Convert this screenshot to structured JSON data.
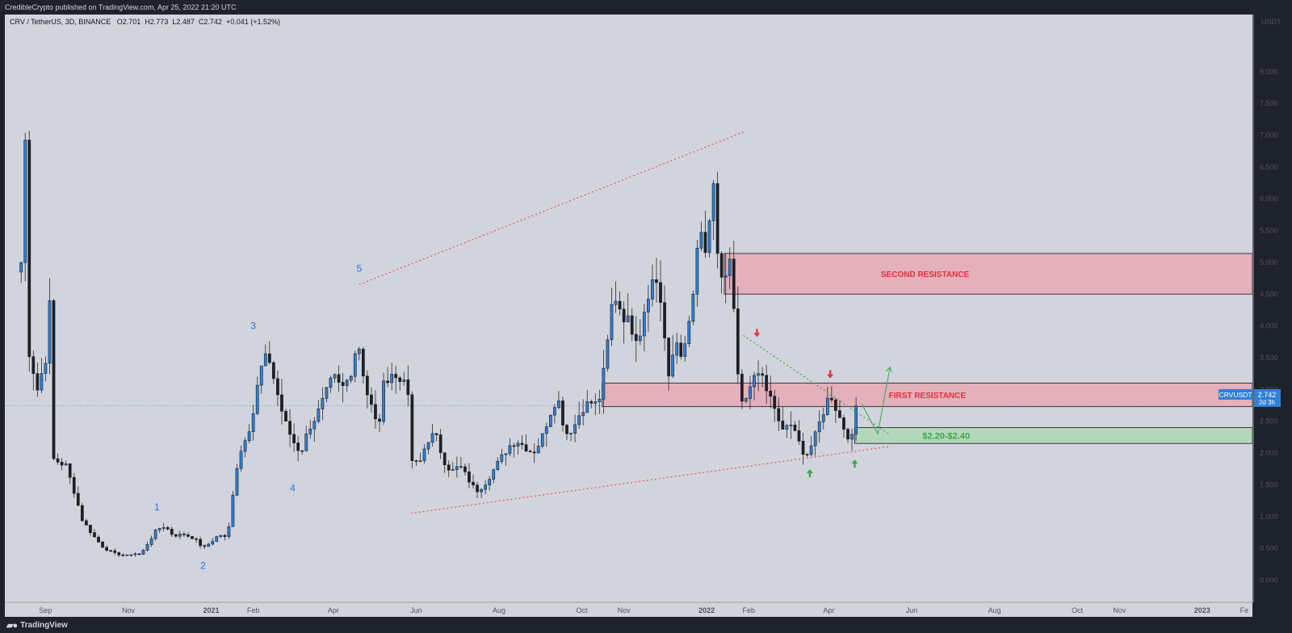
{
  "header": {
    "published": "CredibleCrypto published on TradingView.com, Apr 25, 2022 21:20 UTC"
  },
  "legend": {
    "symbol": "CRV / TetherUS, 3D, BINANCE",
    "o_label": "O",
    "o_value": "2.701",
    "h_label": "H",
    "h_value": "2.773",
    "l_label": "L",
    "l_value": "2.487",
    "c_label": "C",
    "c_value": "2.742",
    "change": "+0.041 (+1.52%)"
  },
  "axis": {
    "unit": "USDT"
  },
  "price_tag": {
    "symbol": "CRVUSDT",
    "price": "2.742",
    "countdown": "2d 3h"
  },
  "footer": {
    "brand": "TradingView"
  },
  "colors": {
    "up": "#2f80d6",
    "down": "#1e1e24",
    "resistance_fill": "#e8a4b0",
    "support_fill": "#a8d8b0",
    "trend": "#e8505b",
    "wave_label": "#2f6fe6",
    "green": "#3fa64a",
    "red": "#e0303a"
  },
  "chart_data": {
    "type": "candlestick",
    "symbol": "CRV / TetherUS",
    "interval": "3D",
    "y_ticks": [
      0,
      0.5,
      1,
      1.5,
      2,
      2.5,
      3,
      3.5,
      4,
      4.5,
      5,
      5.5,
      6,
      6.5,
      7,
      7.5,
      8
    ],
    "y_tick_labels": [
      "0.000",
      "0.500",
      "1.000",
      "1.500",
      "2.000",
      "2.500",
      "3.000",
      "3.500",
      "4.000",
      "4.500",
      "5.000",
      "5.500",
      "6.000",
      "6.500",
      "7.000",
      "7.500",
      "8.000"
    ],
    "ylim": [
      -0.35,
      8.9
    ],
    "x_tick_labels": [
      {
        "label": "Sep",
        "date": "2020-09-01"
      },
      {
        "label": "Nov",
        "date": "2020-11-01"
      },
      {
        "label": "2021",
        "date": "2021-01-01"
      },
      {
        "label": "Feb",
        "date": "2021-02-01"
      },
      {
        "label": "Apr",
        "date": "2021-04-01"
      },
      {
        "label": "Jun",
        "date": "2021-06-01"
      },
      {
        "label": "Aug",
        "date": "2021-08-01"
      },
      {
        "label": "Oct",
        "date": "2021-10-01"
      },
      {
        "label": "Nov",
        "date": "2021-11-01"
      },
      {
        "label": "2022",
        "date": "2022-01-01"
      },
      {
        "label": "Feb",
        "date": "2022-02-01"
      },
      {
        "label": "Apr",
        "date": "2022-04-01"
      },
      {
        "label": "Jun",
        "date": "2022-06-01"
      },
      {
        "label": "Aug",
        "date": "2022-08-01"
      },
      {
        "label": "Oct",
        "date": "2022-10-01"
      },
      {
        "label": "Nov",
        "date": "2022-11-01"
      },
      {
        "label": "2023",
        "date": "2023-01-01"
      },
      {
        "label": "Fe",
        "date": "2023-02-01"
      }
    ],
    "xlim": [
      "2020-08-02",
      "2023-02-07"
    ],
    "last_price": 2.742,
    "waypoints": [
      [
        "2020-08-14",
        5.0
      ],
      [
        "2020-08-17",
        6.9
      ],
      [
        "2020-08-20",
        3.6
      ],
      [
        "2020-08-26",
        3.0
      ],
      [
        "2020-09-01",
        3.5
      ],
      [
        "2020-09-04",
        4.3
      ],
      [
        "2020-09-07",
        1.9
      ],
      [
        "2020-09-16",
        1.8
      ],
      [
        "2020-09-22",
        1.4
      ],
      [
        "2020-09-28",
        0.95
      ],
      [
        "2020-10-06",
        0.7
      ],
      [
        "2020-10-14",
        0.5
      ],
      [
        "2020-10-22",
        0.42
      ],
      [
        "2020-10-30",
        0.38
      ],
      [
        "2020-11-05",
        0.42
      ],
      [
        "2020-11-10",
        0.4
      ],
      [
        "2020-11-16",
        0.6
      ],
      [
        "2020-11-22",
        0.8
      ],
      [
        "2020-11-28",
        0.85
      ],
      [
        "2020-12-04",
        0.7
      ],
      [
        "2020-12-12",
        0.72
      ],
      [
        "2020-12-20",
        0.65
      ],
      [
        "2020-12-26",
        0.5
      ],
      [
        "2021-01-01",
        0.6
      ],
      [
        "2021-01-07",
        0.72
      ],
      [
        "2021-01-13",
        0.65
      ],
      [
        "2021-01-16",
        1.2
      ],
      [
        "2021-01-19",
        1.7
      ],
      [
        "2021-01-25",
        2.2
      ],
      [
        "2021-01-31",
        2.5
      ],
      [
        "2021-02-06",
        3.3
      ],
      [
        "2021-02-12",
        3.55
      ],
      [
        "2021-02-18",
        3.0
      ],
      [
        "2021-02-24",
        2.5
      ],
      [
        "2021-03-02",
        2.2
      ],
      [
        "2021-03-08",
        2.0
      ],
      [
        "2021-03-14",
        2.4
      ],
      [
        "2021-03-20",
        2.6
      ],
      [
        "2021-03-26",
        2.9
      ],
      [
        "2021-04-01",
        3.2
      ],
      [
        "2021-04-07",
        3.0
      ],
      [
        "2021-04-13",
        3.2
      ],
      [
        "2021-04-19",
        3.8
      ],
      [
        "2021-04-25",
        3.0
      ],
      [
        "2021-05-01",
        2.6
      ],
      [
        "2021-05-04",
        2.3
      ],
      [
        "2021-05-07",
        3.0
      ],
      [
        "2021-05-13",
        3.3
      ],
      [
        "2021-05-19",
        3.1
      ],
      [
        "2021-05-25",
        3.3
      ],
      [
        "2021-05-28",
        1.9
      ],
      [
        "2021-06-03",
        1.8
      ],
      [
        "2021-06-09",
        2.2
      ],
      [
        "2021-06-15",
        2.3
      ],
      [
        "2021-06-21",
        1.9
      ],
      [
        "2021-06-27",
        1.7
      ],
      [
        "2021-07-03",
        1.8
      ],
      [
        "2021-07-09",
        1.6
      ],
      [
        "2021-07-15",
        1.4
      ],
      [
        "2021-07-21",
        1.5
      ],
      [
        "2021-07-27",
        1.7
      ],
      [
        "2021-08-02",
        1.9
      ],
      [
        "2021-08-08",
        2.1
      ],
      [
        "2021-08-14",
        2.2
      ],
      [
        "2021-08-20",
        2.1
      ],
      [
        "2021-08-26",
        2.0
      ],
      [
        "2021-09-01",
        2.2
      ],
      [
        "2021-09-07",
        2.6
      ],
      [
        "2021-09-13",
        2.9
      ],
      [
        "2021-09-19",
        2.3
      ],
      [
        "2021-09-25",
        2.4
      ],
      [
        "2021-10-01",
        2.7
      ],
      [
        "2021-10-07",
        2.8
      ],
      [
        "2021-10-13",
        2.75
      ],
      [
        "2021-10-19",
        3.5
      ],
      [
        "2021-10-22",
        4.2
      ],
      [
        "2021-10-25",
        4.5
      ],
      [
        "2021-10-31",
        4.2
      ],
      [
        "2021-11-06",
        4.0
      ],
      [
        "2021-11-12",
        3.8
      ],
      [
        "2021-11-18",
        4.5
      ],
      [
        "2021-11-24",
        4.8
      ],
      [
        "2021-11-30",
        4.2
      ],
      [
        "2021-12-03",
        3.0
      ],
      [
        "2021-12-09",
        3.8
      ],
      [
        "2021-12-15",
        3.5
      ],
      [
        "2021-12-21",
        4.3
      ],
      [
        "2021-12-27",
        5.5
      ],
      [
        "2022-01-02",
        5.0
      ],
      [
        "2022-01-05",
        6.5
      ],
      [
        "2022-01-08",
        5.3
      ],
      [
        "2022-01-14",
        4.5
      ],
      [
        "2022-01-17",
        5.2
      ],
      [
        "2022-01-20",
        4.5
      ],
      [
        "2022-01-23",
        3.5
      ],
      [
        "2022-01-26",
        2.7
      ],
      [
        "2022-02-01",
        2.9
      ],
      [
        "2022-02-07",
        3.4
      ],
      [
        "2022-02-13",
        3.0
      ],
      [
        "2022-02-19",
        2.8
      ],
      [
        "2022-02-25",
        2.3
      ],
      [
        "2022-03-03",
        2.5
      ],
      [
        "2022-03-09",
        2.2
      ],
      [
        "2022-03-15",
        1.95
      ],
      [
        "2022-03-21",
        2.2
      ],
      [
        "2022-03-27",
        2.6
      ],
      [
        "2022-04-02",
        2.95
      ],
      [
        "2022-04-08",
        2.6
      ],
      [
        "2022-04-14",
        2.3
      ],
      [
        "2022-04-20",
        2.2
      ],
      [
        "2022-04-23",
        2.742
      ]
    ],
    "zones": [
      {
        "label": "SECOND RESISTANCE",
        "y_low": 4.5,
        "y_high": 5.14,
        "start": "2022-01-14"
      },
      {
        "label": "FIRST RESISTANCE",
        "y_low": 2.73,
        "y_high": 3.1,
        "start": "2021-10-16"
      },
      {
        "label": "$2.20-$2.40",
        "y_low": 2.15,
        "y_high": 2.4,
        "start": "2022-04-20"
      }
    ],
    "wave_labels": [
      {
        "label": "1",
        "x": "2020-11-22",
        "y": 1.1
      },
      {
        "label": "2",
        "x": "2020-12-26",
        "y": 0.18
      },
      {
        "label": "3",
        "x": "2021-02-01",
        "y": 3.95
      },
      {
        "label": "4",
        "x": "2021-03-02",
        "y": 1.4
      },
      {
        "label": "5",
        "x": "2021-04-20",
        "y": 4.85
      }
    ],
    "trend_lines": [
      {
        "from": [
          "2021-04-20",
          4.65
        ],
        "to": [
          "2022-01-28",
          7.05
        ]
      },
      {
        "from": [
          "2021-05-28",
          1.05
        ],
        "to": [
          "2022-05-15",
          2.1
        ]
      },
      {
        "from": [
          "2022-01-28",
          3.85
        ],
        "to": [
          "2022-05-15",
          2.3
        ]
      }
    ]
  }
}
